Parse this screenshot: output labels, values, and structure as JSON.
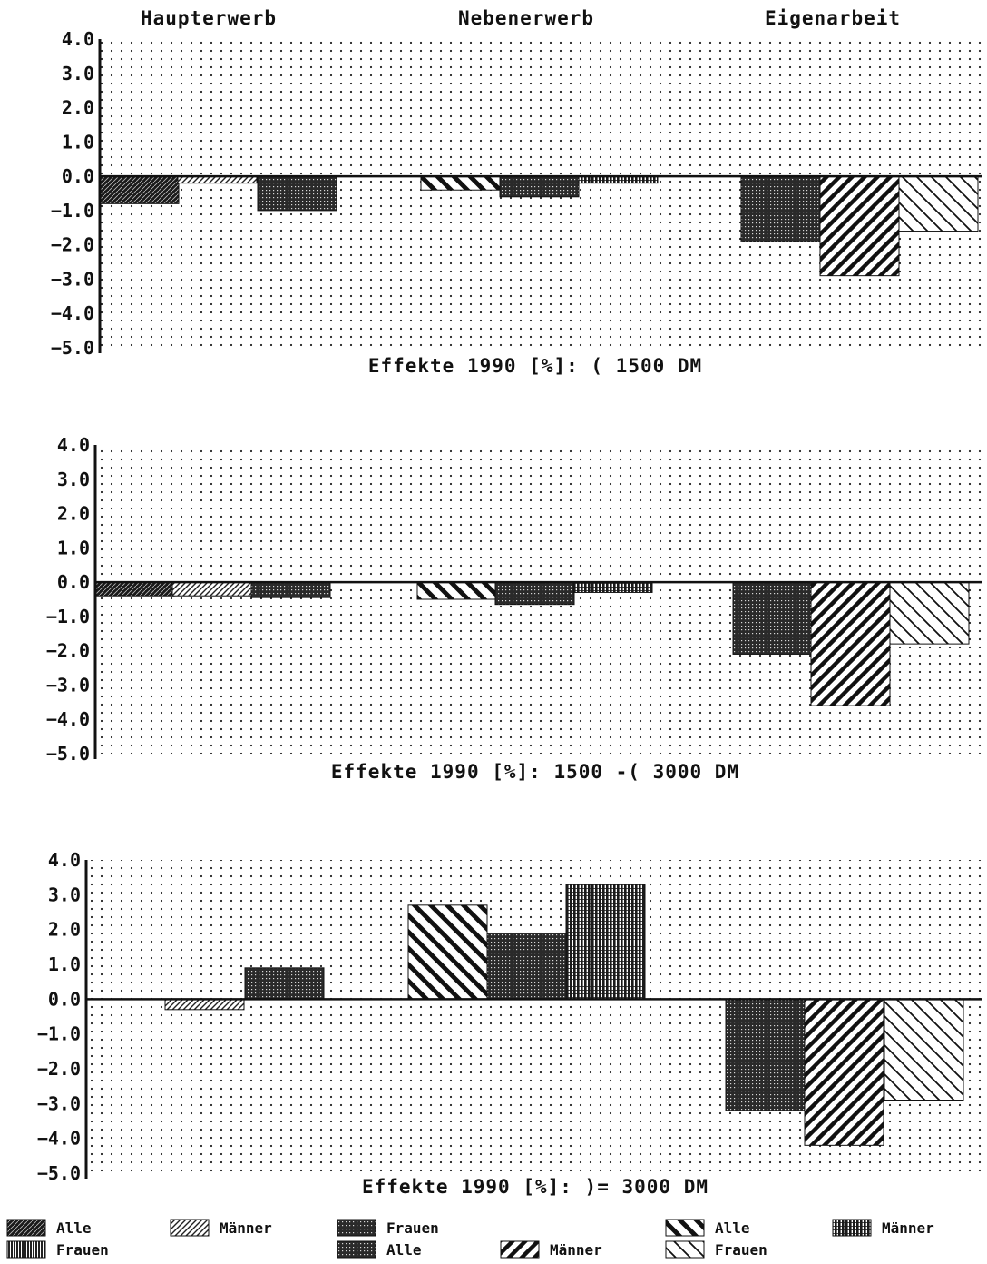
{
  "group_headers": [
    "Haupterwerb",
    "Nebenerwerb",
    "Eigenarbeit"
  ],
  "legend": [
    {
      "label": "Alle",
      "pattern": "dense-dark"
    },
    {
      "label": "Frauen",
      "pattern": "vertical-fine"
    },
    {
      "label": "Männer",
      "pattern": "diag-fine"
    },
    {
      "label": "Frauen",
      "pattern": "dense-grid"
    },
    {
      "label": "Alle",
      "pattern": "dense-grid"
    },
    {
      "label": "Männer",
      "pattern": "diag-bold"
    },
    {
      "label": "Alle",
      "pattern": "diag-back-bold"
    },
    {
      "label": "Frauen",
      "pattern": "diag-back-thin"
    },
    {
      "label": "Männer",
      "pattern": "vertical-dense"
    }
  ],
  "chart_data": [
    {
      "type": "bar",
      "title": "Effekte 1990 [%]: ( 1500 DM",
      "ylim": [
        -5.0,
        4.0
      ],
      "yticks": [
        "4.0",
        "3.0",
        "2.0",
        "1.0",
        "0.0",
        "-1.0",
        "-2.0",
        "-3.0",
        "-4.0",
        "-5.0"
      ],
      "grid": "dotted background",
      "categories": [
        "Haupterwerb",
        "Nebenerwerb",
        "Eigenarbeit"
      ],
      "series": [
        {
          "group": "Haupterwerb",
          "name": "Alle",
          "value": -0.8
        },
        {
          "group": "Haupterwerb",
          "name": "Männer",
          "value": -0.2
        },
        {
          "group": "Haupterwerb",
          "name": "Frauen",
          "value": -1.0
        },
        {
          "group": "Nebenerwerb",
          "name": "Alle",
          "value": -0.4
        },
        {
          "group": "Nebenerwerb",
          "name": "Frauen",
          "value": -0.6
        },
        {
          "group": "Nebenerwerb",
          "name": "Männer",
          "value": -0.2
        },
        {
          "group": "Eigenarbeit",
          "name": "Alle",
          "value": -1.9
        },
        {
          "group": "Eigenarbeit",
          "name": "Männer",
          "value": -2.9
        },
        {
          "group": "Eigenarbeit",
          "name": "Frauen",
          "value": -1.6
        }
      ]
    },
    {
      "type": "bar",
      "title": "Effekte 1990 [%]: 1500 -( 3000 DM",
      "ylim": [
        -5.0,
        4.0
      ],
      "yticks": [
        "4.0",
        "3.0",
        "2.0",
        "1.0",
        "0.0",
        "-1.0",
        "-2.0",
        "-3.0",
        "-4.0",
        "-5.0"
      ],
      "grid": "dotted background",
      "categories": [
        "Haupterwerb",
        "Nebenerwerb",
        "Eigenarbeit"
      ],
      "series": [
        {
          "group": "Haupterwerb",
          "name": "Alle",
          "value": -0.4
        },
        {
          "group": "Haupterwerb",
          "name": "Männer",
          "value": -0.4
        },
        {
          "group": "Haupterwerb",
          "name": "Frauen",
          "value": -0.45
        },
        {
          "group": "Nebenerwerb",
          "name": "Alle",
          "value": -0.5
        },
        {
          "group": "Nebenerwerb",
          "name": "Frauen",
          "value": -0.65
        },
        {
          "group": "Nebenerwerb",
          "name": "Männer",
          "value": -0.3
        },
        {
          "group": "Eigenarbeit",
          "name": "Alle",
          "value": -2.1
        },
        {
          "group": "Eigenarbeit",
          "name": "Männer",
          "value": -3.6
        },
        {
          "group": "Eigenarbeit",
          "name": "Frauen",
          "value": -1.8
        }
      ]
    },
    {
      "type": "bar",
      "title": "Effekte 1990 [%]: )= 3000 DM",
      "ylim": [
        -5.0,
        4.0
      ],
      "yticks": [
        "4.0",
        "3.0",
        "2.0",
        "1.0",
        "0.0",
        "-1.0",
        "-2.0",
        "-3.0",
        "-4.0",
        "-5.0"
      ],
      "grid": "dotted background",
      "categories": [
        "Haupterwerb",
        "Nebenerwerb",
        "Eigenarbeit"
      ],
      "series": [
        {
          "group": "Haupterwerb",
          "name": "Alle",
          "value": 0.0
        },
        {
          "group": "Haupterwerb",
          "name": "Männer",
          "value": -0.3
        },
        {
          "group": "Haupterwerb",
          "name": "Frauen",
          "value": 0.9
        },
        {
          "group": "Nebenerwerb",
          "name": "Alle",
          "value": 2.7
        },
        {
          "group": "Nebenerwerb",
          "name": "Frauen",
          "value": 1.9
        },
        {
          "group": "Nebenerwerb",
          "name": "Männer",
          "value": 3.3
        },
        {
          "group": "Eigenarbeit",
          "name": "Alle",
          "value": -3.2
        },
        {
          "group": "Eigenarbeit",
          "name": "Männer",
          "value": -4.2
        },
        {
          "group": "Eigenarbeit",
          "name": "Frauen",
          "value": -2.9
        }
      ]
    }
  ]
}
